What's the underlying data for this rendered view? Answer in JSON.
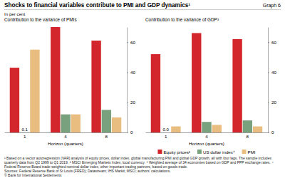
{
  "header": {
    "title": "Shocks to financial variables contribute to PMI and GDP dynamics¹",
    "graph_number": "Graph 6",
    "unit": "In per cent"
  },
  "chart_data": [
    {
      "type": "bar",
      "title": "Contribution to the variance of PMIs",
      "categories": [
        "1",
        "4",
        "8"
      ],
      "x_label": "Horizon (quarters)",
      "ylim": [
        0,
        70
      ],
      "yticks": [
        0,
        20,
        40,
        60
      ],
      "grid": false,
      "series": [
        {
          "color": "#d3262c",
          "values": [
            43,
            70,
            61
          ]
        },
        {
          "color": "#7aa17e",
          "values": [
            0.1,
            12,
            15
          ],
          "value_labels": [
            "0.1",
            null,
            null
          ]
        },
        {
          "color": "#e8bd7f",
          "values": [
            55,
            12,
            10
          ]
        }
      ]
    },
    {
      "type": "bar",
      "title": "Contribution to the variance of GDP³",
      "categories": [
        "1",
        "4",
        "8"
      ],
      "x_label": "Horizon (quarters)",
      "ylim": [
        0,
        70
      ],
      "yticks": [
        0,
        20,
        40,
        60
      ],
      "grid": false,
      "legend": "bottom",
      "series": [
        {
          "name": "Equity prices²",
          "color": "#d3262c",
          "values": [
            52,
            66,
            62
          ]
        },
        {
          "name": "US dollar index⁴",
          "color": "#7aa17e",
          "values": [
            0.0,
            7,
            8
          ],
          "value_labels": [
            "0.0",
            null,
            null
          ]
        },
        {
          "name": "PMI",
          "color": "#e8bd7f",
          "values": [
            4,
            5,
            4
          ]
        }
      ]
    }
  ],
  "footnotes": [
    "¹ Based on a vector autoregression (VAR) analysis of equity prices, dollar index, global manufacturing PMI and global GDP growth, all with four lags. The sample includes quarterly data from Q2 1999 to Q1 2019.",
    "² MSCI Emerging Markets Index, local currency.",
    "³ Weighted average of 34 economies based on GDP and PPP exchange rates.",
    "⁴ Federal Reserve Board trade-weighted nominal dollar index, other important trading partners, based on goods trade."
  ],
  "sources": "Sources: Federal Reserve Bank of St Louis (FRED); Datastream; IHS Markit; MSCI; authors' calculations.",
  "copyright": "© Bank for International Settlements"
}
